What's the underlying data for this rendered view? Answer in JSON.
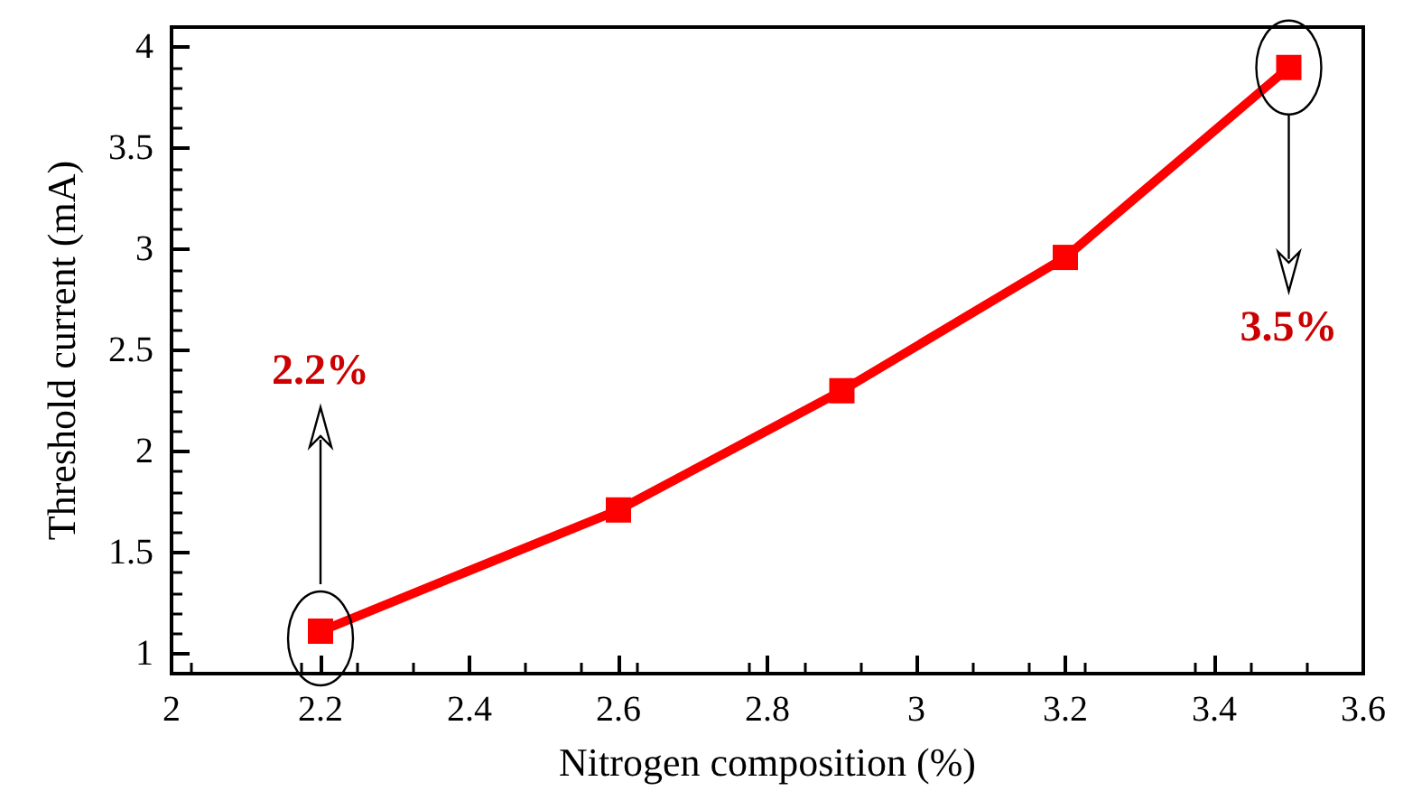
{
  "chart_data": {
    "type": "line",
    "xlabel": "Nitrogen composition (%)",
    "ylabel": "Threshold current (mA)",
    "x": [
      2.2,
      2.6,
      2.9,
      3.2,
      3.5
    ],
    "series": [
      {
        "color": "#ff0000",
        "values": [
          1.11,
          1.71,
          2.3,
          2.96,
          3.9
        ]
      }
    ],
    "xlim": [
      2,
      3.6
    ],
    "xticks": [
      2,
      2.2,
      2.4,
      2.6,
      2.8,
      3,
      3.2,
      3.4,
      3.6
    ],
    "ylim": [
      0.9,
      4.1
    ],
    "yticks": [
      1,
      1.5,
      2,
      2.5,
      3,
      3.5,
      4
    ],
    "grid": false,
    "marker": "square",
    "line_style": "solid",
    "annotations": [
      "2.2%",
      "3.5%"
    ]
  }
}
